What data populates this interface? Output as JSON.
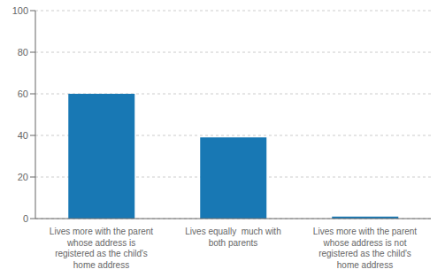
{
  "chart_data": {
    "type": "bar",
    "categories": [
      "Lives more with the parent\nwhose address is\nregistered as the child's\nhome address",
      "Lives equally  much with\nboth parents",
      "Lives more with the parent\nwhose address is not\nregistered as the child's\nhome address"
    ],
    "values": [
      60,
      39,
      1
    ],
    "color": "#1878b4",
    "ylim": [
      0,
      100
    ],
    "yticks": [
      0,
      20,
      40,
      60,
      80,
      100
    ],
    "grid": true
  }
}
